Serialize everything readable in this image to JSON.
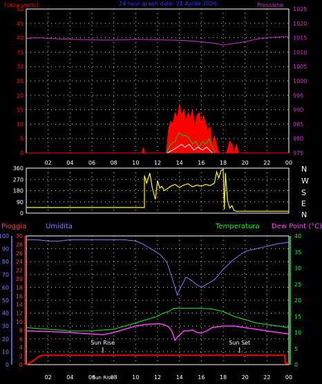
{
  "colors": {
    "background": "#000000",
    "frame": "#ffffff",
    "grid": "#d8d8d8",
    "wind": "#ff0000",
    "pressure": "#cc33cc",
    "gust": "#00cc00",
    "gust2": "#ffffff",
    "direction": "#ffff00",
    "rain": "#ff0000",
    "humidity": "#8080ff",
    "temperature": "#00ff00",
    "dewpoint": "#ff40ff",
    "date": "#3333ff",
    "sun": "#ffffff"
  },
  "header": {
    "wind_label": "Forza vento)",
    "date_label": "24 hour graph date: 21 Aprile 2026",
    "pressure_label": "Pressione"
  },
  "labels": {
    "rain": "Pioggia",
    "humidity": "Umidita",
    "temperature": "Temperatura",
    "dewpoint": "Dew Point (°C)",
    "sunrise": "Sun Rise",
    "sunset": "Sun Set",
    "compass": [
      "N",
      "W",
      "S",
      "E",
      "N"
    ]
  },
  "chart_data": [
    {
      "id": "wind-pressure",
      "type": "line",
      "xlim": [
        0,
        24
      ],
      "x_ticks": [
        {
          "h": 2,
          "label": "02"
        },
        {
          "h": 4,
          "label": "04"
        },
        {
          "h": 6,
          "label": "06"
        },
        {
          "h": 8,
          "label": "08"
        },
        {
          "h": 10,
          "label": "10"
        },
        {
          "h": 12,
          "label": "12"
        },
        {
          "h": 14,
          "label": "14"
        },
        {
          "h": 16,
          "label": "16"
        },
        {
          "h": 18,
          "label": "18"
        },
        {
          "h": 20,
          "label": "20"
        },
        {
          "h": 22,
          "label": "22"
        },
        {
          "h": 24,
          "label": "00"
        }
      ],
      "y_left": {
        "label": "Forza vento)",
        "ylim": [
          0,
          50
        ],
        "ticks": [
          "0",
          "5",
          "10",
          "15",
          "20",
          "25",
          "30",
          "35",
          "40",
          "45",
          "50"
        ]
      },
      "y_right": {
        "label": "Pressione",
        "ylim": [
          975,
          1025
        ],
        "ticks": [
          "975",
          "980",
          "985",
          "990",
          "995",
          "1000",
          "1005",
          "1010",
          "1015",
          "1020",
          "1025"
        ]
      },
      "series": [
        {
          "role": "pressure",
          "x": [
            0,
            1,
            2,
            3,
            4,
            5,
            6,
            7,
            8,
            9,
            10,
            11,
            12,
            13,
            14,
            15,
            16,
            17,
            18,
            19,
            20,
            21,
            22,
            23,
            24
          ],
          "values": [
            1014.7,
            1015.0,
            1014.8,
            1014.6,
            1014.5,
            1014.4,
            1014.3,
            1014.2,
            1014.2,
            1014.3,
            1014.5,
            1014.4,
            1014.3,
            1014.2,
            1014.1,
            1013.9,
            1013.6,
            1013.2,
            1012.5,
            1013.0,
            1013.6,
            1014.5,
            1015.0,
            1015.3,
            1015.4
          ]
        },
        {
          "role": "wind",
          "x": [
            0,
            10.6,
            10.7,
            10.8,
            12.8,
            13.0,
            13.2,
            13.4,
            13.6,
            13.8,
            14.0,
            14.2,
            14.4,
            14.6,
            14.8,
            15.0,
            15.2,
            15.4,
            15.6,
            15.8,
            16.0,
            16.2,
            16.4,
            16.6,
            16.8,
            17.0,
            17.2,
            17.4,
            17.6,
            18.0,
            18.3,
            18.6,
            18.8,
            19.0,
            19.2,
            19.4,
            24
          ],
          "values": [
            0,
            0,
            2,
            0,
            0,
            8,
            11,
            10,
            14,
            12,
            17,
            13,
            15,
            11,
            14,
            12,
            15,
            9,
            13,
            14,
            10,
            13,
            10,
            8,
            9,
            2,
            6,
            3,
            0,
            0,
            0,
            4,
            3,
            0,
            3,
            0,
            0
          ]
        },
        {
          "role": "gust",
          "x": [
            12.8,
            13.2,
            13.6,
            13.8,
            14.0,
            14.3,
            14.6,
            14.9,
            15.2,
            15.5,
            15.8,
            16.1,
            16.4,
            16.7,
            17.0,
            17.3
          ],
          "values": [
            0,
            3,
            4,
            6,
            7,
            6,
            6,
            5,
            3,
            4,
            2,
            4,
            3,
            5,
            2,
            0
          ]
        },
        {
          "role": "gust2",
          "x": [
            12.9,
            13.4,
            13.8,
            14.2,
            14.5,
            14.9,
            15.3,
            15.7,
            16.1,
            16.5,
            17.0
          ],
          "values": [
            0,
            1,
            2,
            3,
            2,
            3,
            1,
            2,
            1,
            2,
            0
          ]
        }
      ]
    },
    {
      "id": "wind-direction",
      "type": "line",
      "xlim": [
        0,
        24
      ],
      "y_left": {
        "ylim": [
          0,
          360
        ],
        "ticks": [
          "0",
          "90",
          "180",
          "270",
          "360"
        ]
      },
      "series": [
        {
          "role": "direction",
          "x": [
            0,
            10.8,
            10.8,
            11.0,
            11.3,
            11.5,
            11.8,
            12.0,
            12.2,
            12.4,
            12.6,
            12.8,
            13.2,
            13.6,
            14.0,
            14.4,
            14.8,
            15.2,
            15.6,
            16.0,
            16.4,
            16.8,
            17.2,
            17.4,
            17.6,
            17.8,
            18.0,
            18.1,
            18.2,
            18.4,
            18.6,
            18.8,
            19.0,
            19.2,
            24
          ],
          "values": [
            45,
            45,
            300,
            240,
            320,
            210,
            110,
            260,
            200,
            215,
            180,
            190,
            215,
            230,
            205,
            225,
            235,
            210,
            225,
            215,
            230,
            220,
            240,
            330,
            280,
            340,
            350,
            30,
            320,
            100,
            40,
            60,
            20,
            15,
            15
          ]
        }
      ]
    },
    {
      "id": "rain-humidity-temperature",
      "type": "line",
      "xlim": [
        0,
        24
      ],
      "x_ticks": [
        {
          "h": 2,
          "label": "02"
        },
        {
          "h": 4,
          "label": "04"
        },
        {
          "h": 6,
          "label": "06"
        },
        {
          "h": 7,
          "label": "Sun Rise"
        },
        {
          "h": 8,
          "label": "08"
        },
        {
          "h": 10,
          "label": "10"
        },
        {
          "h": 12,
          "label": "12"
        },
        {
          "h": 14,
          "label": "14"
        },
        {
          "h": 16,
          "label": "16"
        },
        {
          "h": 18,
          "label": "18"
        },
        {
          "h": 20,
          "label": "20"
        },
        {
          "h": 22,
          "label": "22"
        },
        {
          "h": 24,
          "label": "00"
        }
      ],
      "y_humidity": {
        "label": "Umidita",
        "ylim": [
          0,
          100
        ],
        "ticks": [
          "0",
          "10",
          "20",
          "30",
          "40",
          "50",
          "60",
          "70",
          "80",
          "90",
          "100"
        ]
      },
      "y_rain": {
        "label": "Pioggia",
        "ylim": [
          0,
          30
        ],
        "ticks": [
          "0",
          "2",
          "4",
          "6",
          "8",
          "10",
          "12",
          "14",
          "16",
          "18",
          "20",
          "22",
          "24",
          "26",
          "28",
          "30"
        ]
      },
      "y_temp": {
        "label": "Temperatura",
        "ylim": [
          0,
          40
        ],
        "ticks": [
          "0",
          "5",
          "10",
          "15",
          "20",
          "25",
          "30",
          "35",
          "40"
        ]
      },
      "annotations": [
        {
          "text": "Sun Rise",
          "x": 7
        },
        {
          "text": "Sun Set",
          "x": 19.5
        }
      ],
      "series": [
        {
          "role": "humidity",
          "x": [
            0,
            1,
            2,
            3,
            4,
            5,
            6,
            7,
            8,
            9,
            10,
            10.6,
            11.2,
            11.8,
            12.3,
            12.8,
            13.0,
            13.3,
            13.6,
            13.8,
            14.0,
            14.3,
            14.6,
            15.0,
            15.3,
            15.6,
            16.0,
            16.4,
            16.8,
            17.2,
            17.6,
            18.0,
            18.5,
            19.0,
            19.5,
            20.0,
            21.0,
            22.0,
            23.0,
            24.0
          ],
          "values": [
            97,
            97,
            96,
            96,
            97,
            97,
            97,
            97,
            97,
            97,
            96,
            94,
            91,
            88,
            85,
            80,
            76,
            68,
            60,
            54,
            58,
            63,
            68,
            66,
            64,
            62,
            60,
            62,
            64,
            66,
            70,
            74,
            78,
            82,
            85,
            88,
            90,
            92,
            94,
            95
          ]
        },
        {
          "role": "temperature",
          "x": [
            0,
            2,
            4,
            6,
            8,
            9,
            10,
            11,
            12,
            12.5,
            13,
            13.5,
            14,
            15,
            16,
            17,
            18,
            19,
            20,
            21,
            22,
            23,
            24
          ],
          "values": [
            11.5,
            11,
            10.5,
            10.5,
            11,
            12,
            13,
            14,
            15,
            16,
            16.5,
            17.5,
            17.5,
            17.5,
            17.5,
            17.3,
            16.5,
            15,
            14,
            13,
            12.5,
            12,
            11.5
          ]
        },
        {
          "role": "dewpoint",
          "x": [
            0,
            2,
            4,
            6,
            7,
            8,
            9,
            10,
            11,
            12,
            12.5,
            13,
            13.3,
            13.6,
            13.8,
            14.1,
            14.4,
            14.8,
            15.2,
            15.6,
            16,
            16.5,
            17,
            18,
            19,
            20,
            21,
            22,
            23,
            24
          ],
          "values": [
            10.5,
            10.3,
            10,
            9.5,
            9.3,
            10,
            11,
            12,
            12.5,
            12.7,
            12.5,
            11.8,
            10.5,
            7.5,
            8.5,
            9.5,
            10.5,
            10.5,
            10.8,
            10,
            9.8,
            10.5,
            11.5,
            12,
            12,
            11.5,
            11,
            10.5,
            10,
            9.5
          ]
        },
        {
          "role": "rain",
          "x": [
            0,
            0.4,
            0.8,
            1.2,
            1.6,
            2.0,
            23.5,
            23.6,
            23.7,
            24
          ],
          "values": [
            0,
            0.5,
            1.2,
            2,
            2.2,
            2.2,
            2.2,
            2.2,
            0.3,
            0.3
          ]
        }
      ]
    }
  ]
}
